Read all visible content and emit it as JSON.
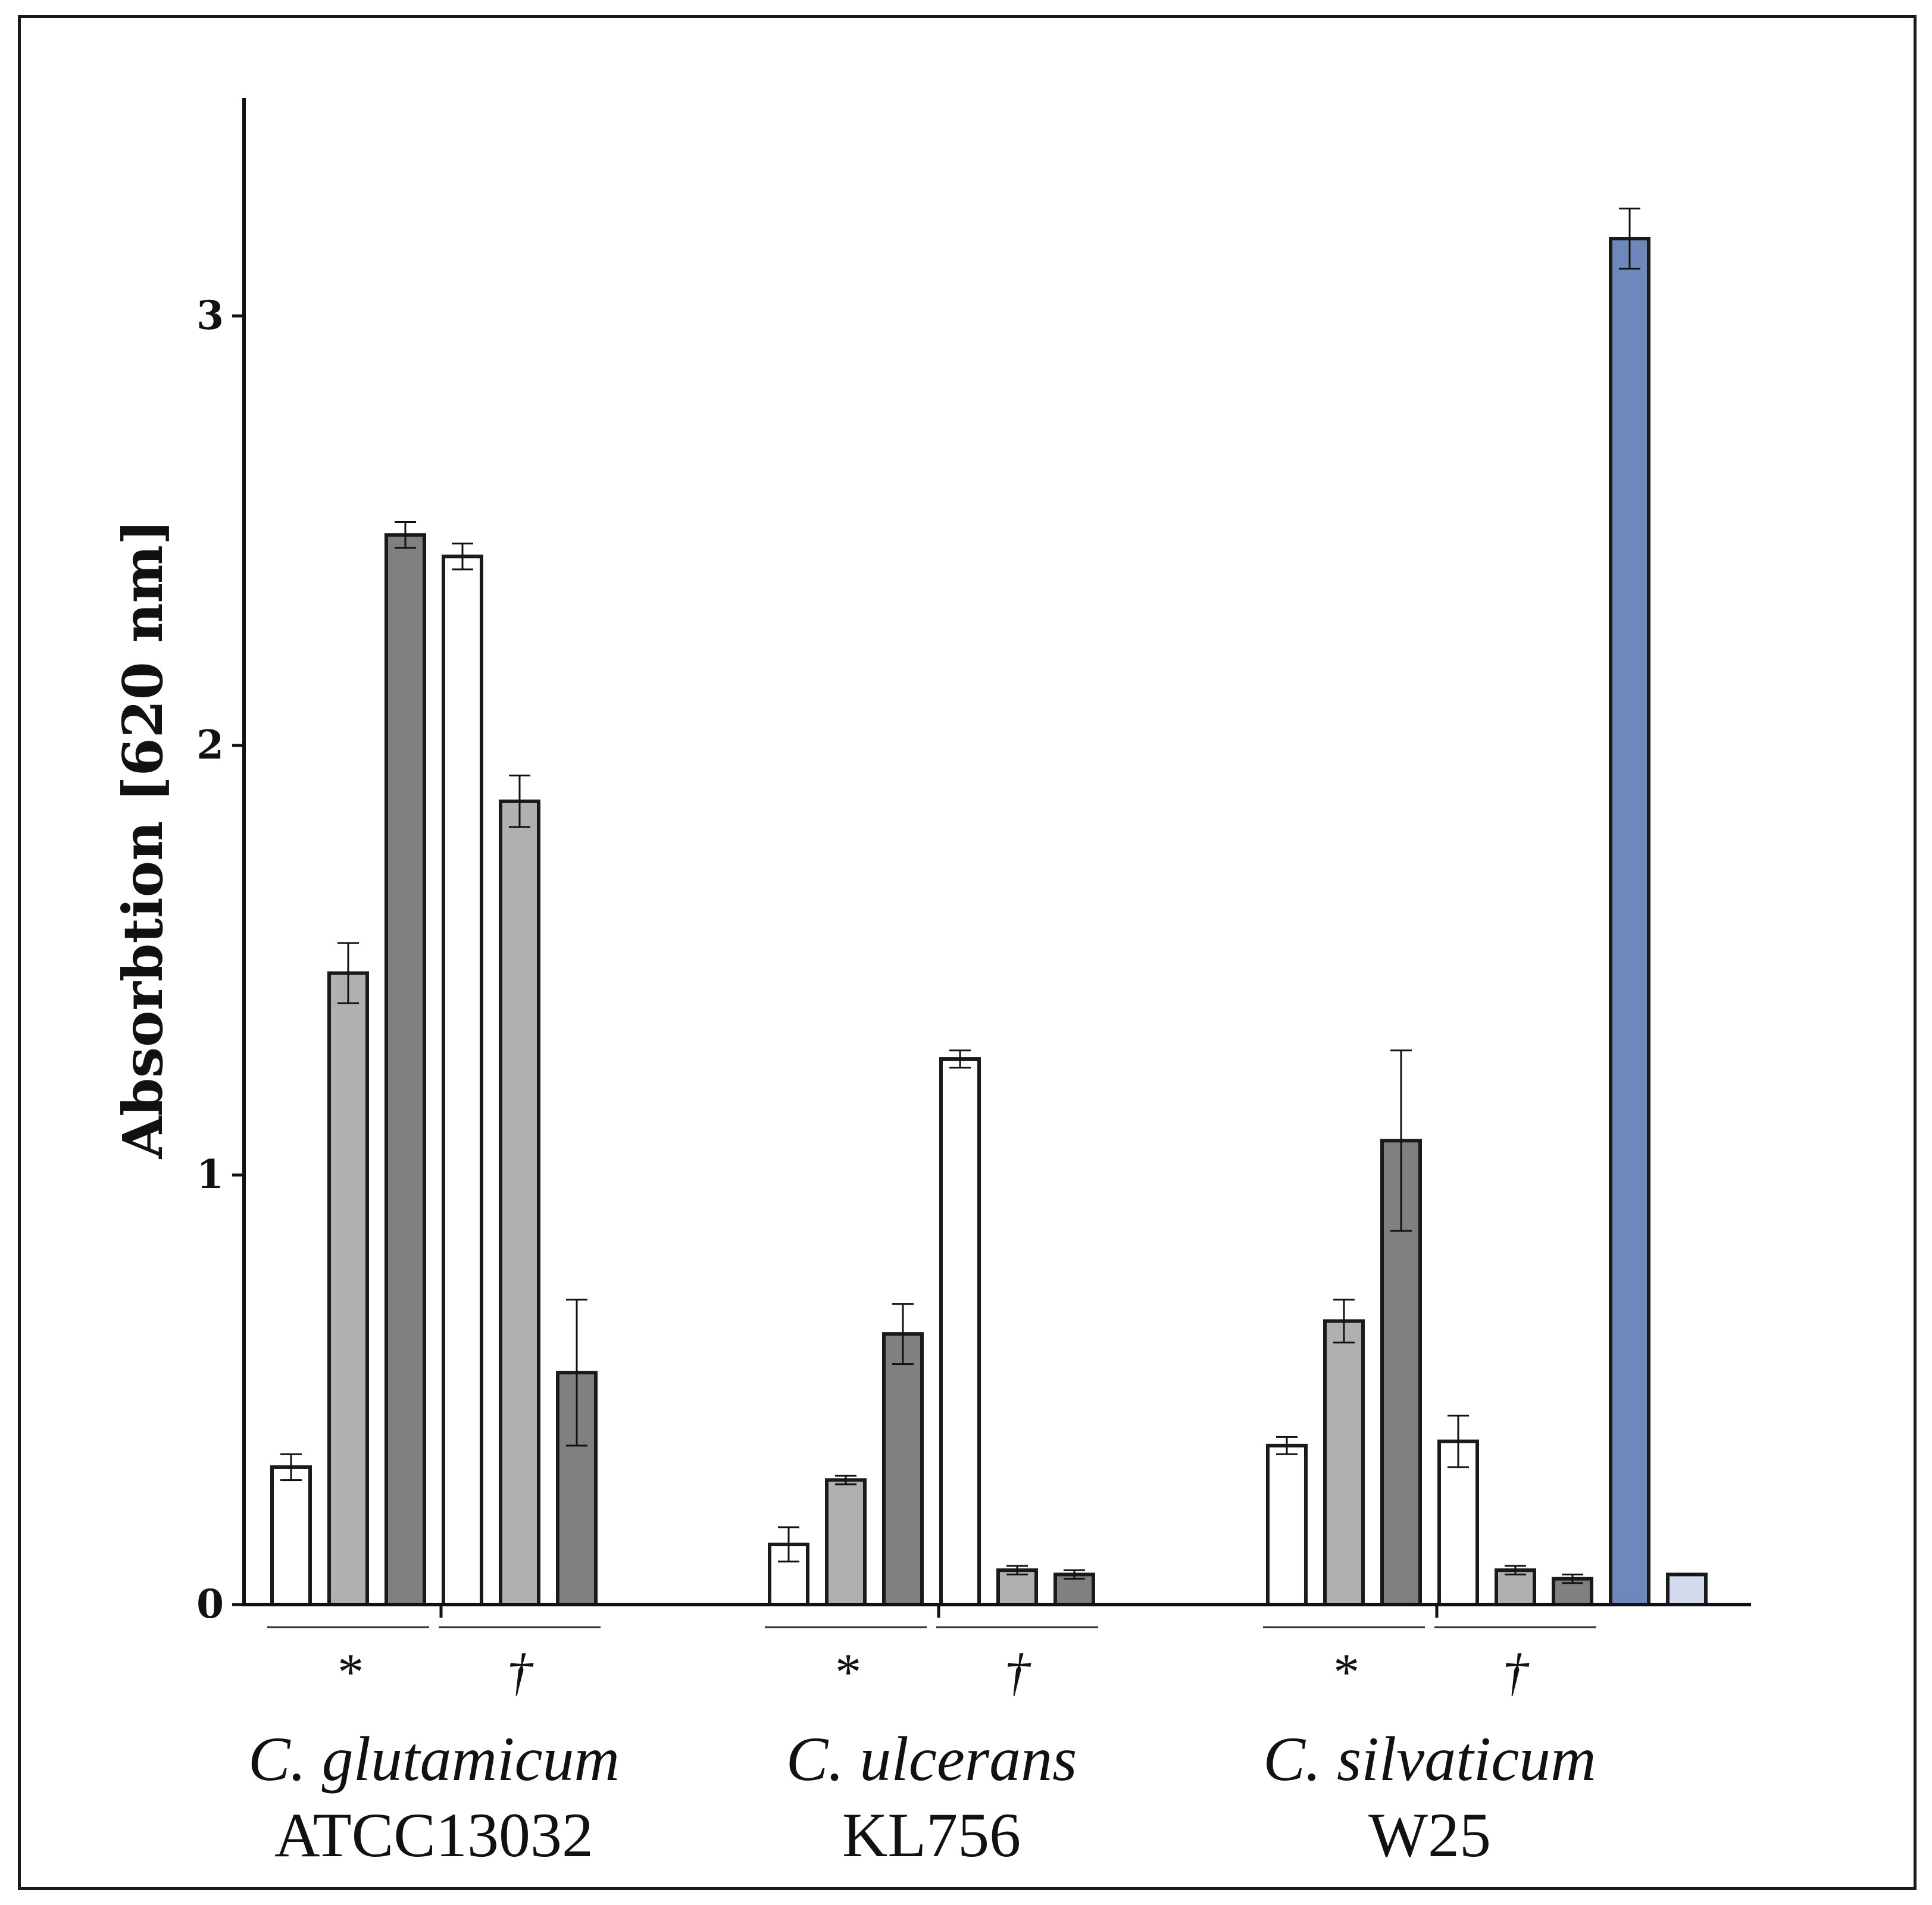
{
  "chart_data": {
    "type": "bar",
    "title": "",
    "xlabel": "",
    "ylabel": "Absorbtion [620 nm]",
    "ylim": [
      0,
      3.5
    ],
    "yticks": [
      "0",
      "1",
      "2",
      "3"
    ],
    "grid": false,
    "colors": {
      "white": "#ffffff",
      "light_gray": "#b0b0b0",
      "dark_gray": "#808080",
      "blue": "#6e88bb",
      "light_blue": "#d3dcef",
      "stroke": "#1a1a1a"
    },
    "groups": [
      {
        "name": "C. glutamicum",
        "strain": "ATCC13032",
        "subgroups": [
          {
            "symbol": "*",
            "bars": [
              {
                "value": 0.32,
                "error": 0.03,
                "color": "white"
              },
              {
                "value": 1.47,
                "error": 0.07,
                "color": "light_gray"
              },
              {
                "value": 2.49,
                "error": 0.03,
                "color": "dark_gray"
              }
            ]
          },
          {
            "symbol": "†",
            "bars": [
              {
                "value": 2.44,
                "error": 0.03,
                "color": "white"
              },
              {
                "value": 1.87,
                "error": 0.06,
                "color": "light_gray"
              },
              {
                "value": 0.54,
                "error": 0.17,
                "color": "dark_gray"
              }
            ]
          }
        ],
        "extra_bars": []
      },
      {
        "name": "C. ulcerans",
        "strain": "KL756",
        "subgroups": [
          {
            "symbol": "*",
            "bars": [
              {
                "value": 0.14,
                "error": 0.04,
                "color": "white"
              },
              {
                "value": 0.29,
                "error": 0.01,
                "color": "light_gray"
              },
              {
                "value": 0.63,
                "error": 0.07,
                "color": "dark_gray"
              }
            ]
          },
          {
            "symbol": "†",
            "bars": [
              {
                "value": 1.27,
                "error": 0.02,
                "color": "white"
              },
              {
                "value": 0.08,
                "error": 0.01,
                "color": "light_gray"
              },
              {
                "value": 0.07,
                "error": 0.01,
                "color": "dark_gray"
              }
            ]
          }
        ],
        "extra_bars": []
      },
      {
        "name": "C. silvaticum",
        "strain": "W25",
        "subgroups": [
          {
            "symbol": "*",
            "bars": [
              {
                "value": 0.37,
                "error": 0.02,
                "color": "white"
              },
              {
                "value": 0.66,
                "error": 0.05,
                "color": "light_gray"
              },
              {
                "value": 1.08,
                "error": 0.21,
                "color": "dark_gray"
              }
            ]
          },
          {
            "symbol": "†",
            "bars": [
              {
                "value": 0.38,
                "error": 0.06,
                "color": "white"
              },
              {
                "value": 0.08,
                "error": 0.01,
                "color": "light_gray"
              },
              {
                "value": 0.06,
                "error": 0.01,
                "color": "dark_gray"
              }
            ]
          }
        ],
        "extra_bars": [
          {
            "value": 3.18,
            "error": 0.07,
            "color": "blue"
          },
          {
            "value": 0.07,
            "error": 0.0,
            "color": "light_blue"
          }
        ]
      }
    ]
  }
}
